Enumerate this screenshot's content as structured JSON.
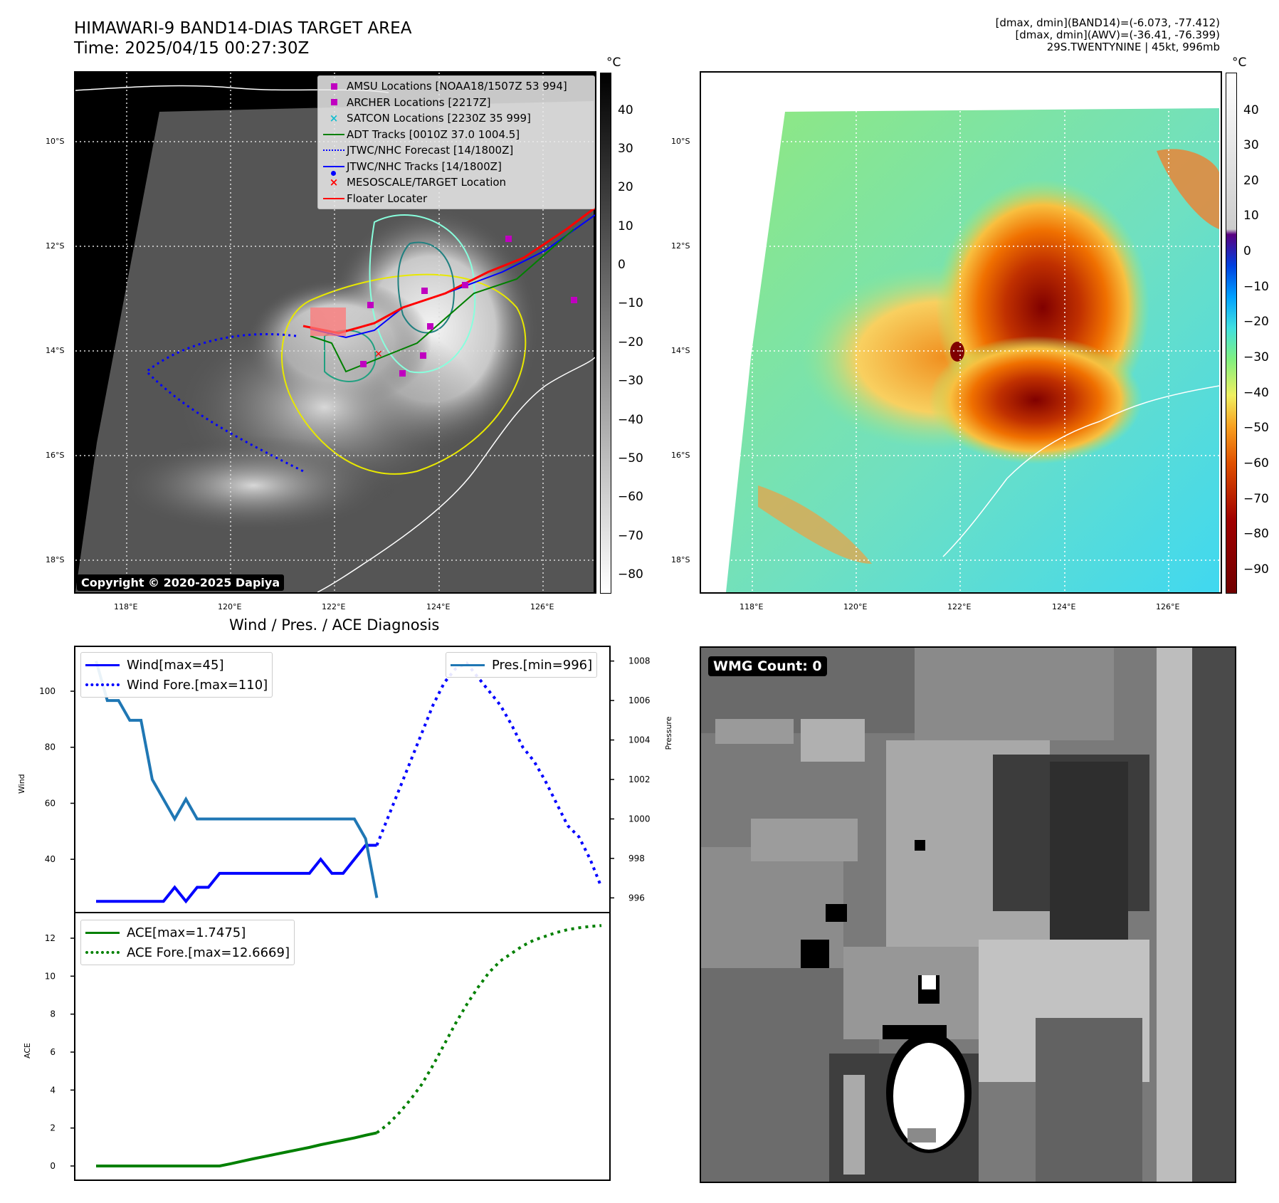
{
  "header": {
    "title_line1": "HIMAWARI-9 BAND14-DIAS TARGET AREA",
    "title_line2": "Time: 2025/04/15 00:27:30Z",
    "meta_line1": "[dmax, dmin](BAND14)=(-6.073, -77.412)",
    "meta_line2": "[dmax, dmin](AWV)=(-36.41, -76.399)",
    "meta_line3": "29S.TWENTYNINE | 45kt, 996mb"
  },
  "map_axes": {
    "lat_labels": [
      "10°S",
      "12°S",
      "14°S",
      "16°S",
      "18°S"
    ],
    "lon_labels": [
      "118°E",
      "120°E",
      "122°E",
      "124°E",
      "126°E"
    ]
  },
  "ir_map": {
    "colorbar_unit": "°C",
    "colorbar_ticks": [
      "40",
      "30",
      "20",
      "10",
      "0",
      "−10",
      "−20",
      "−30",
      "−40",
      "−50",
      "−60",
      "−70",
      "−80"
    ],
    "copyright": "Copyright © 2020-2025 Dapiya",
    "legend": [
      {
        "label": "AMSU Locations [NOAA18/1507Z 53 994]",
        "symbol": "square",
        "color": "#c000c0"
      },
      {
        "label": "ARCHER Locations [2217Z]",
        "symbol": "square",
        "color": "#c000c0"
      },
      {
        "label": "SATCON Locations [2230Z 35 999]",
        "symbol": "x",
        "color": "#17becf"
      },
      {
        "label": "ADT Tracks [0010Z 37.0 1004.5]",
        "symbol": "line",
        "color": "#008000"
      },
      {
        "label": "JTWC/NHC Forecast [14/1800Z]",
        "symbol": "dotted",
        "color": "#0000ff"
      },
      {
        "label": "JTWC/NHC Tracks [14/1800Z]",
        "symbol": "line-dot",
        "color": "#0000ff"
      },
      {
        "label": "MESOSCALE/TARGET Location",
        "symbol": "x",
        "color": "#ff0000"
      },
      {
        "label": "Floater Locater",
        "symbol": "line",
        "color": "#ff0000"
      }
    ]
  },
  "colored_map": {
    "colorbar_unit": "°C",
    "colorbar_ticks": [
      "40",
      "30",
      "20",
      "10",
      "0",
      "−10",
      "−20",
      "−30",
      "−40",
      "−50",
      "−60",
      "−70",
      "−80",
      "−90"
    ]
  },
  "wmg": {
    "label": "WMG Count: 0"
  },
  "chart_data": [
    {
      "type": "line",
      "title": "Wind / Pres. / ACE Diagnosis",
      "ylabel": "Wind",
      "y2label": "Pressure",
      "ylim": [
        22,
        115
      ],
      "y2lim": [
        995.4,
        1008.6
      ],
      "yticks": [
        40,
        60,
        80,
        100
      ],
      "y2ticks": [
        996,
        998,
        1000,
        1002,
        1004,
        1006,
        1008
      ],
      "series": [
        {
          "name": "Wind[max=45]",
          "axis": "left",
          "style": "solid",
          "color": "#0000ff",
          "x": [
            0,
            1,
            2,
            3,
            4,
            5,
            6,
            7,
            8,
            9,
            10,
            11,
            12,
            13,
            14,
            15,
            16,
            17,
            18,
            19,
            20,
            21,
            22,
            23,
            24,
            25
          ],
          "values": [
            25,
            25,
            25,
            25,
            25,
            25,
            25,
            30,
            25,
            30,
            30,
            35,
            35,
            35,
            35,
            35,
            35,
            35,
            35,
            35,
            40,
            35,
            35,
            40,
            45,
            45
          ]
        },
        {
          "name": "Wind Fore.[max=110]",
          "axis": "left",
          "style": "dotted",
          "color": "#0000ff",
          "x": [
            25,
            26,
            27,
            28,
            29,
            30,
            31,
            32,
            33,
            34,
            35,
            36,
            37,
            38,
            39,
            40,
            41,
            42,
            43,
            44,
            45
          ],
          "values": [
            45,
            55,
            65,
            75,
            85,
            95,
            103,
            108,
            110,
            105,
            100,
            95,
            88,
            80,
            75,
            68,
            60,
            52,
            48,
            40,
            30
          ]
        },
        {
          "name": "Pres.[min=996]",
          "axis": "right",
          "style": "solid",
          "color": "#1f77b4",
          "x": [
            0,
            1,
            2,
            3,
            4,
            5,
            6,
            7,
            8,
            9,
            10,
            11,
            12,
            13,
            14,
            15,
            16,
            17,
            18,
            19,
            20,
            21,
            22,
            23,
            24,
            25
          ],
          "values": [
            1008,
            1006,
            1006,
            1005,
            1005,
            1002,
            1001,
            1000,
            1001,
            1000,
            1000,
            1000,
            1000,
            1000,
            1000,
            1000,
            1000,
            1000,
            1000,
            1000,
            1000,
            1000,
            1000,
            1000,
            999,
            996
          ]
        }
      ],
      "legend_left": [
        "Wind[max=45]",
        "Wind Fore.[max=110]"
      ],
      "legend_right": [
        "Pres.[min=996]"
      ]
    },
    {
      "type": "line",
      "ylabel": "ACE",
      "ylim": [
        -0.6,
        13.2
      ],
      "yticks": [
        0,
        2,
        4,
        6,
        8,
        10,
        12
      ],
      "series": [
        {
          "name": "ACE[max=1.7475]",
          "style": "solid",
          "color": "#008000",
          "x": [
            0,
            1,
            2,
            3,
            4,
            5,
            6,
            7,
            8,
            9,
            10,
            11,
            12,
            13,
            14,
            15,
            16,
            17,
            18,
            19,
            20,
            21,
            22,
            23,
            24,
            25
          ],
          "values": [
            0,
            0,
            0,
            0,
            0,
            0,
            0,
            0,
            0,
            0,
            0,
            0,
            0.12,
            0.25,
            0.38,
            0.5,
            0.62,
            0.74,
            0.86,
            0.98,
            1.12,
            1.24,
            1.36,
            1.48,
            1.62,
            1.7475
          ]
        },
        {
          "name": "ACE Fore.[max=12.6669]",
          "style": "dotted",
          "color": "#008000",
          "x": [
            25,
            26,
            27,
            28,
            29,
            30,
            31,
            32,
            33,
            34,
            35,
            36,
            37,
            38,
            39,
            40,
            41,
            42,
            43,
            44,
            45
          ],
          "values": [
            1.75,
            2.2,
            2.8,
            3.5,
            4.3,
            5.3,
            6.4,
            7.5,
            8.5,
            9.4,
            10.2,
            10.8,
            11.2,
            11.6,
            11.9,
            12.1,
            12.3,
            12.45,
            12.55,
            12.62,
            12.6669
          ]
        }
      ]
    }
  ]
}
